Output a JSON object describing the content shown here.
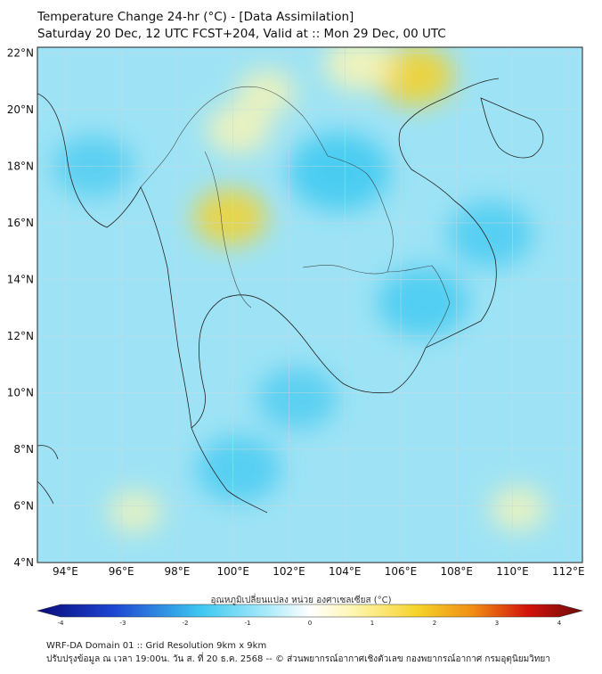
{
  "header": {
    "title_line1": "Temperature Change 24-hr (°C) - [Data Assimilation]",
    "title_line2": "Saturday 20 Dec, 12 UTC FCST+204, Valid at :: Mon 29 Dec, 00 UTC"
  },
  "map": {
    "lat_labels": [
      "22°N",
      "20°N",
      "18°N",
      "16°N",
      "14°N",
      "12°N",
      "10°N",
      "8°N",
      "6°N",
      "4°N"
    ],
    "lon_labels": [
      "94°E",
      "96°E",
      "98°E",
      "100°E",
      "102°E",
      "104°E",
      "106°E",
      "108°E",
      "110°E",
      "112°E"
    ],
    "lat_values": [
      22,
      20,
      18,
      16,
      14,
      12,
      10,
      8,
      6,
      4
    ],
    "lon_values": [
      94,
      96,
      98,
      100,
      102,
      104,
      106,
      108,
      110,
      112
    ],
    "extent": {
      "lon_min": 93,
      "lon_max": 112.5,
      "lat_min": 4,
      "lat_max": 22.2
    },
    "warm_areas": [
      {
        "name": "northern-vietnam-warm",
        "lon": 106.5,
        "lat": 21.2,
        "level": 0.8
      },
      {
        "name": "north-laos-warm",
        "lon": 104.5,
        "lat": 21.6,
        "level": 0.6
      },
      {
        "name": "north-thailand-warm",
        "lon": 100.2,
        "lat": 19.3,
        "level": 0.5
      },
      {
        "name": "central-thailand-warm",
        "lon": 99.9,
        "lat": 16.2,
        "level": 0.7
      },
      {
        "name": "shan-warm",
        "lon": 101.2,
        "lat": 20.6,
        "level": 0.4
      },
      {
        "name": "south-andaman-warm",
        "lon": 96.5,
        "lat": 5.8,
        "level": 0.3
      },
      {
        "name": "south-china-sea-warm",
        "lon": 110.2,
        "lat": 5.9,
        "level": 0.35
      }
    ],
    "cool_areas": [
      {
        "name": "northeast-thailand-cool",
        "lon": 103.8,
        "lat": 17.8,
        "level": 0.9
      },
      {
        "name": "cambodia-cool",
        "lon": 106.8,
        "lat": 13.2,
        "level": 0.7
      },
      {
        "name": "gulf-thailand-cool",
        "lon": 102.3,
        "lat": 9.8,
        "level": 0.5
      },
      {
        "name": "south-peninsula-cool",
        "lon": 100.2,
        "lat": 7.3,
        "level": 0.6
      },
      {
        "name": "west-myanmar-cool",
        "lon": 95.0,
        "lat": 18.0,
        "level": 0.5
      },
      {
        "name": "east-vietnam-sea-cool",
        "lon": 109.2,
        "lat": 15.6,
        "level": 0.6
      }
    ]
  },
  "colorbar": {
    "label": "อุณหภูมิเปลี่ยนแปลง หน่วย องศาเซลเซียส (°C)",
    "ticks": [
      "-4",
      "-3",
      "-2",
      "-1",
      "0",
      "1",
      "2",
      "3",
      "4"
    ],
    "tick_values": [
      -4,
      -3,
      -2,
      -1,
      0,
      1,
      2,
      3,
      4
    ],
    "colors": {
      "deep_blue": "#0a0a7a",
      "blue": "#1e46d2",
      "cyan": "#3ec8f0",
      "light_cyan": "#a8eafa",
      "white": "#ffffff",
      "light_yellow": "#fff6b0",
      "yellow": "#f5d228",
      "orange": "#f08c14",
      "red": "#d2140a",
      "dark_red": "#6e0a0a"
    }
  },
  "footer": {
    "line1": "WRF-DA Domain 01 :: Grid Resolution 9km x 9km",
    "line2": "ปรับปรุงข้อมูล ณ เวลา 19:00น. วัน ส. ที่ 20 ธ.ค. 2568 -- © ส่วนพยากรณ์อากาศเชิงตัวเลข กองพยากรณ์อากาศ กรมอุตุนิยมวิทยา"
  }
}
